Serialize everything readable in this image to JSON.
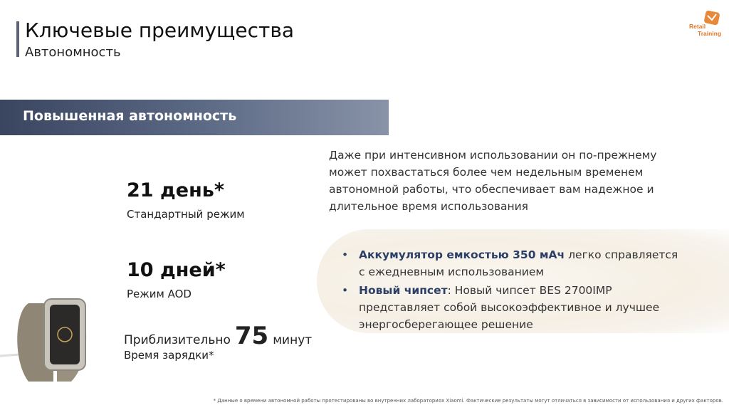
{
  "header": {
    "title": "Ключевые преимущества",
    "subtitle": "Автономность"
  },
  "logo": {
    "line1": "Retail",
    "line2": "Training"
  },
  "banner": "Повышенная автономность",
  "stats": [
    {
      "value": "21 день*",
      "label": "Стандартный режим"
    },
    {
      "value": "10 дней*",
      "label": "Режим AOD"
    }
  ],
  "charging": {
    "prefix": "Приблизительно",
    "number": 75,
    "unit": "минут",
    "label": "Время зарядки*"
  },
  "description": "Даже при интенсивном использовании он по-прежнему может похвастаться более чем недельным временем автономной работы, что обеспечивает вам надежное и длительное время использования",
  "bullets": [
    {
      "bold": "Аккумулятор емкостью 350 мАч",
      "text": "легко справляется с ежедневным использованием"
    },
    {
      "bold": "Новый чипсет",
      "text": ": Новый чипсет BES 2700IMP представляет собой высокоэффективное и лучшее энергосберегающее решение"
    }
  ],
  "footnote": "* Данные о времени автономной работы протестированы во внутренних лабораториях Xiaomi. Фактические результаты могут отличаться в зависимости от использования и других факторов."
}
